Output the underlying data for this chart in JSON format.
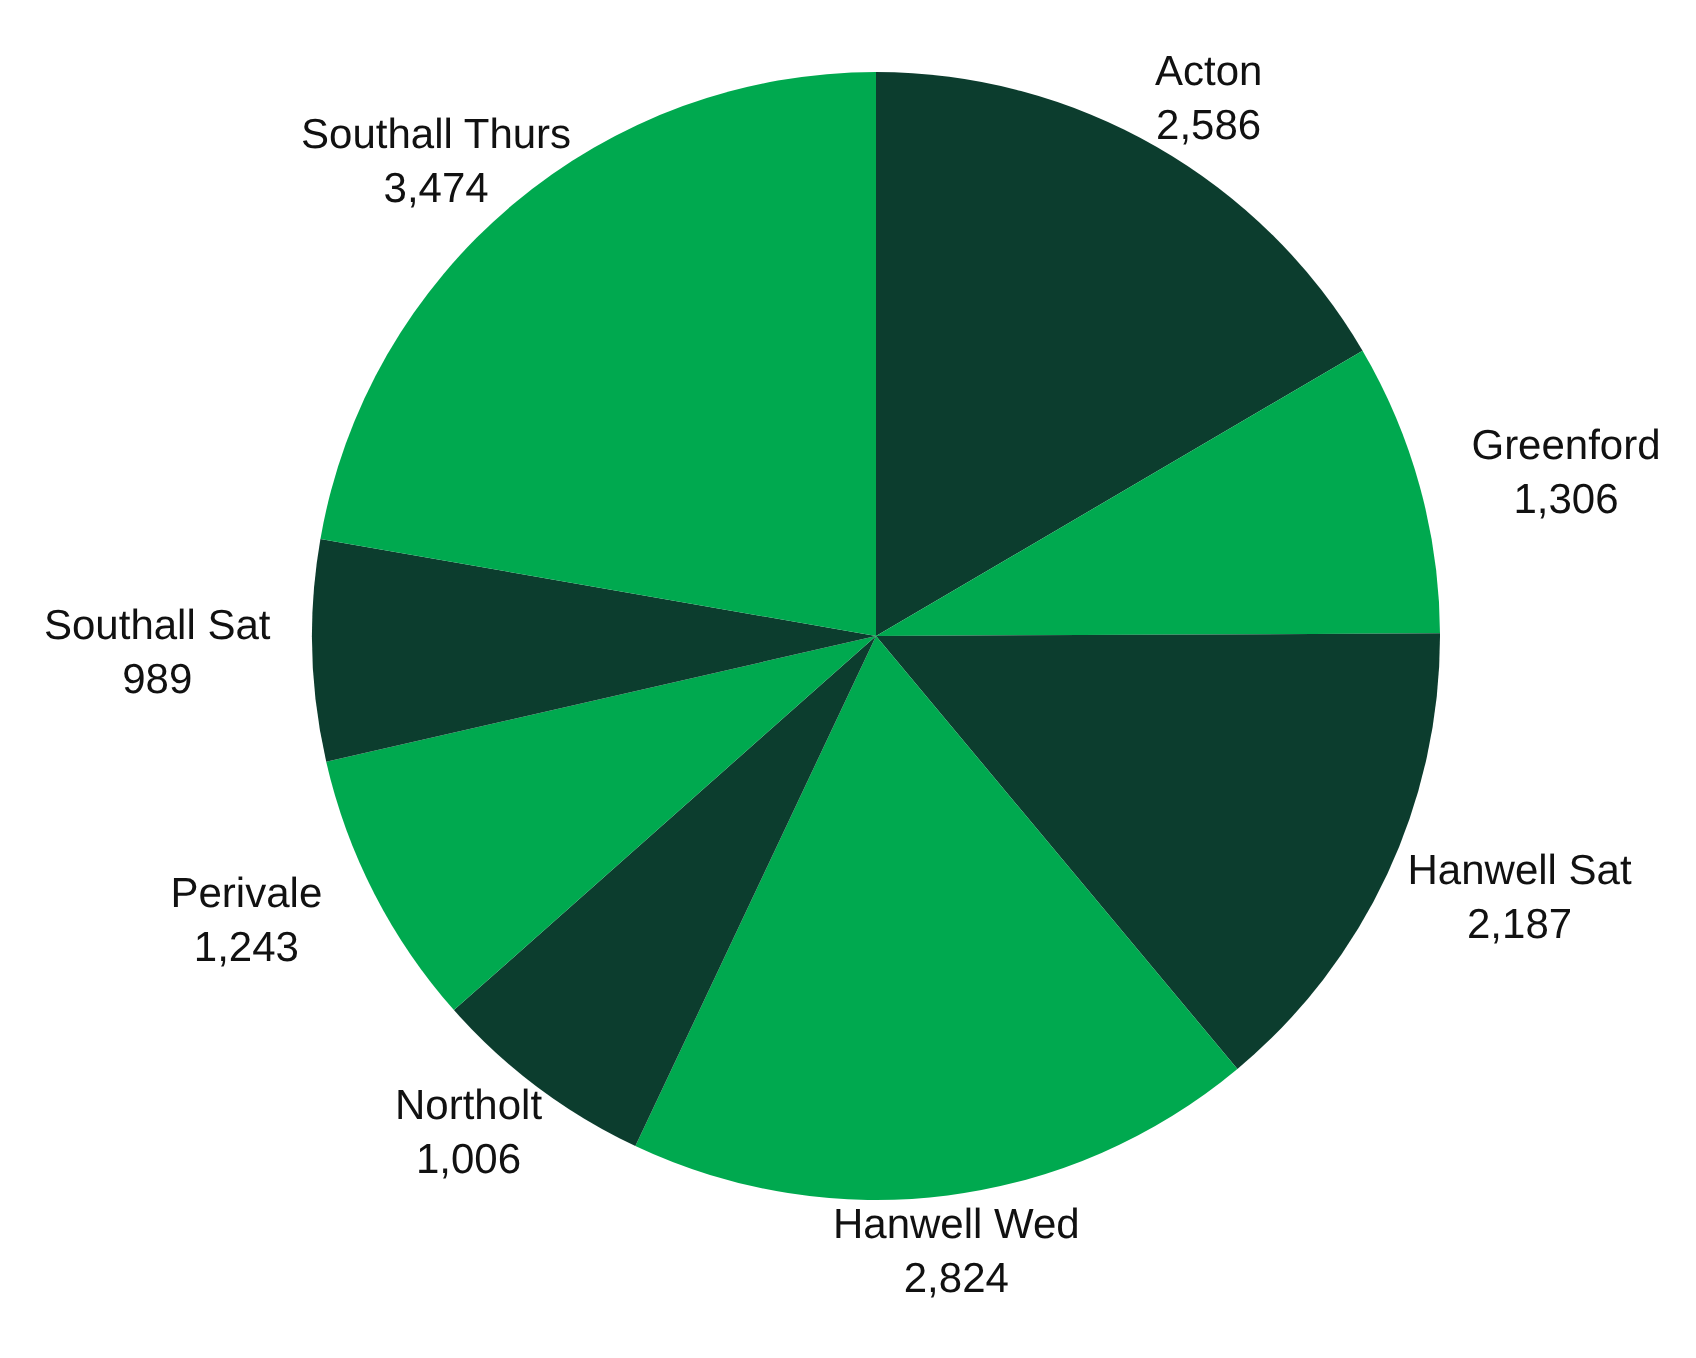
{
  "chart_data": {
    "type": "pie",
    "categories": [
      "Acton",
      "Greenford",
      "Hanwell Sat",
      "Hanwell Wed",
      "Northolt",
      "Perivale",
      "Southall Sat",
      "Southall Thurs"
    ],
    "values": [
      2586,
      1306,
      2187,
      2824,
      1006,
      1243,
      989,
      3474
    ],
    "value_labels": [
      "2,586",
      "1,306",
      "2,187",
      "2,824",
      "1,006",
      "1,243",
      "989",
      "3,474"
    ],
    "colors": [
      "#0c3d2e",
      "#00a94f",
      "#0c3d2e",
      "#00a94f",
      "#0c3d2e",
      "#00a94f",
      "#0c3d2e",
      "#00a94f"
    ]
  }
}
